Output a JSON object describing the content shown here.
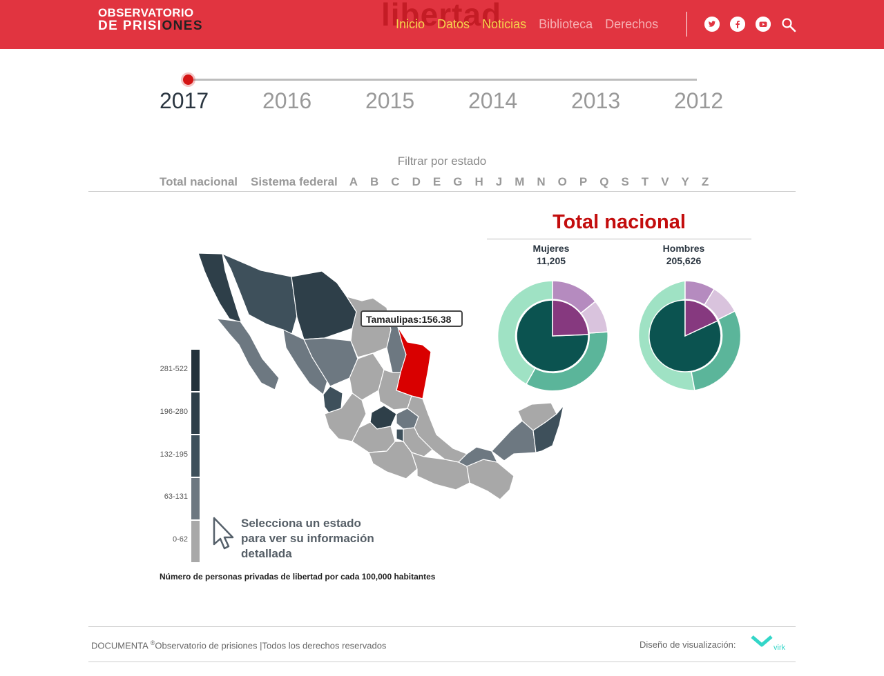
{
  "header": {
    "logo_line1": "OBSERVATORIO",
    "logo_line2a": "DE PRISI",
    "logo_line2b": "ONES",
    "background_word": "libertad",
    "nav": [
      {
        "label": "Inicio"
      },
      {
        "label": "Datos"
      },
      {
        "label": "Noticias"
      },
      {
        "label": "Biblioteca"
      },
      {
        "label": "Derechos"
      }
    ],
    "social_icons": [
      "twitter-icon",
      "facebook-icon",
      "youtube-icon"
    ],
    "search_icon": "search-icon"
  },
  "timeline": {
    "years": [
      "2017",
      "2016",
      "2015",
      "2014",
      "2013",
      "2012"
    ],
    "selected": "2017"
  },
  "filter": {
    "title": "Filtrar por estado",
    "options": [
      "Total nacional",
      "Sistema federal",
      "A",
      "B",
      "C",
      "D",
      "E",
      "G",
      "H",
      "J",
      "M",
      "N",
      "O",
      "P",
      "Q",
      "S",
      "T",
      "V",
      "Y",
      "Z"
    ]
  },
  "map": {
    "tooltip": "Tamaulipas:156.38",
    "highlight_state": "Tamaulipas",
    "highlight_color": "#d90000",
    "legend": [
      {
        "label": "281-522",
        "color": "#22313a"
      },
      {
        "label": "196-280",
        "color": "#2e3f49"
      },
      {
        "label": "132-195",
        "color": "#3e505b"
      },
      {
        "label": "63-131",
        "color": "#6d7881"
      },
      {
        "label": "0-62",
        "color": "#a8a8a8"
      }
    ],
    "hint": "Selecciona un estado para ver su información detallada",
    "caption": "Número de personas privadas de libertad por cada 100,000 habitantes"
  },
  "summary": {
    "title": "Total nacional",
    "groups": [
      {
        "label": "Mujeres",
        "value": "11,205"
      },
      {
        "label": "Hombres",
        "value": "205,626"
      }
    ]
  },
  "colors": {
    "brand_red": "#e13440",
    "teal_dark": "#0b5350",
    "teal_mid": "#5bb59a",
    "teal_light": "#9fe2c4",
    "purple_dark": "#86397f",
    "purple_mid": "#b58bbf",
    "purple_light": "#d9c3dd"
  },
  "footer": {
    "left_brand": "DOCUMENTA",
    "reg": "®",
    "left_text": "Observatorio de prisiones |Todos los derechos reservados",
    "right_label": "Diseño de visualización:",
    "designer": "virk"
  }
}
